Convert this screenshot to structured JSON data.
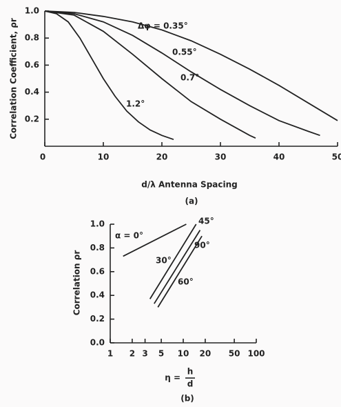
{
  "chart_data": [
    {
      "type": "line",
      "ylabel": "Correlation Coefficient, ρr",
      "xlabel": "d/λ Antenna Spacing",
      "caption": "(a)",
      "xlim": [
        0,
        50
      ],
      "xticks": [
        0,
        10,
        20,
        30,
        40,
        50
      ],
      "ylim": [
        0,
        1
      ],
      "yticks": [
        0.2,
        0.4,
        0.6,
        0.8,
        {
          "value": 1,
          "label": "1.0"
        }
      ],
      "series": [
        {
          "name": "Δφ = 0.35°",
          "color": "#222222",
          "x": [
            0,
            5,
            10,
            15,
            20,
            25,
            30,
            35,
            40,
            45,
            50
          ],
          "values": [
            1,
            0.99,
            0.96,
            0.92,
            0.86,
            0.78,
            0.68,
            0.57,
            0.45,
            0.32,
            0.19
          ]
        },
        {
          "name": "0.55°",
          "color": "#222222",
          "x": [
            0,
            5,
            10,
            15,
            20,
            25,
            30,
            35,
            40,
            45,
            47
          ],
          "values": [
            1,
            0.98,
            0.92,
            0.82,
            0.69,
            0.55,
            0.42,
            0.3,
            0.19,
            0.11,
            0.08
          ]
        },
        {
          "name": "0.7°",
          "color": "#222222",
          "x": [
            0,
            5,
            10,
            15,
            20,
            25,
            30,
            35,
            36
          ],
          "values": [
            1,
            0.97,
            0.85,
            0.68,
            0.5,
            0.33,
            0.2,
            0.08,
            0.06
          ]
        },
        {
          "name": "1.2°",
          "color": "#222222",
          "x": [
            0,
            2,
            4,
            6,
            8,
            10,
            12,
            14,
            16,
            18,
            20,
            22
          ],
          "values": [
            1,
            0.98,
            0.92,
            0.8,
            0.65,
            0.5,
            0.37,
            0.26,
            0.18,
            0.12,
            0.08,
            0.05
          ]
        }
      ]
    },
    {
      "type": "line",
      "ylabel": "Correlation ρr",
      "xlabel": "η =",
      "xlabel_fraction": [
        "h",
        "d"
      ],
      "caption": "(b)",
      "xscale": "log",
      "xlim": [
        1,
        100
      ],
      "xticks": [
        1,
        2,
        3,
        5,
        10,
        20,
        50,
        100
      ],
      "ylim": [
        0,
        1
      ],
      "yticks": [
        {
          "value": 0,
          "label": "0.0"
        },
        0.2,
        0.4,
        0.6,
        0.8,
        {
          "value": 1,
          "label": "1.0"
        }
      ],
      "annotations": [
        "45°"
      ],
      "series": [
        {
          "name": "α = 0°",
          "color": "#222222",
          "x": [
            1.5,
            11
          ],
          "values": [
            0.73,
            1
          ]
        },
        {
          "name": "30°",
          "color": "#222222",
          "x": [
            3.5,
            15
          ],
          "values": [
            0.37,
            1
          ]
        },
        {
          "name": "90°",
          "color": "#222222",
          "x": [
            4,
            17
          ],
          "values": [
            0.33,
            0.95
          ]
        },
        {
          "name": "60°",
          "color": "#222222",
          "x": [
            4.5,
            18
          ],
          "values": [
            0.3,
            0.9
          ]
        }
      ]
    }
  ]
}
